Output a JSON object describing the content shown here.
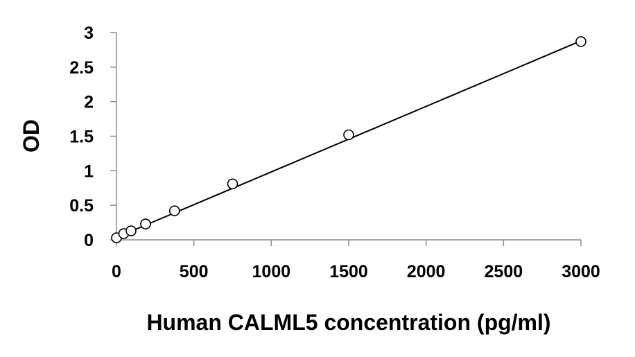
{
  "chart_data": {
    "type": "scatter",
    "xlabel": "Human CALML5 concentration (pg/ml)",
    "ylabel": "OD",
    "xlim": [
      0,
      3000
    ],
    "ylim": [
      0,
      3
    ],
    "x_ticks": [
      "0",
      "500",
      "1000",
      "1500",
      "2000",
      "2500",
      "3000"
    ],
    "y_ticks": [
      "0",
      "0.5",
      "1",
      "1.5",
      "2",
      "2.5",
      "3"
    ],
    "grid": false,
    "legend": "none",
    "series": [
      {
        "marker": "open-circle",
        "points": [
          {
            "x": 0,
            "y": 0.03
          },
          {
            "x": 47,
            "y": 0.09
          },
          {
            "x": 94,
            "y": 0.13
          },
          {
            "x": 188,
            "y": 0.23
          },
          {
            "x": 375,
            "y": 0.42
          },
          {
            "x": 750,
            "y": 0.81
          },
          {
            "x": 1500,
            "y": 1.52
          },
          {
            "x": 3000,
            "y": 2.87
          }
        ]
      }
    ],
    "trendline": {
      "x": [
        0,
        3000
      ],
      "y": [
        0.035,
        2.88
      ]
    },
    "colors": {
      "line": "#000000",
      "marker_fill": "#ffffff",
      "marker_stroke": "#000000"
    }
  }
}
